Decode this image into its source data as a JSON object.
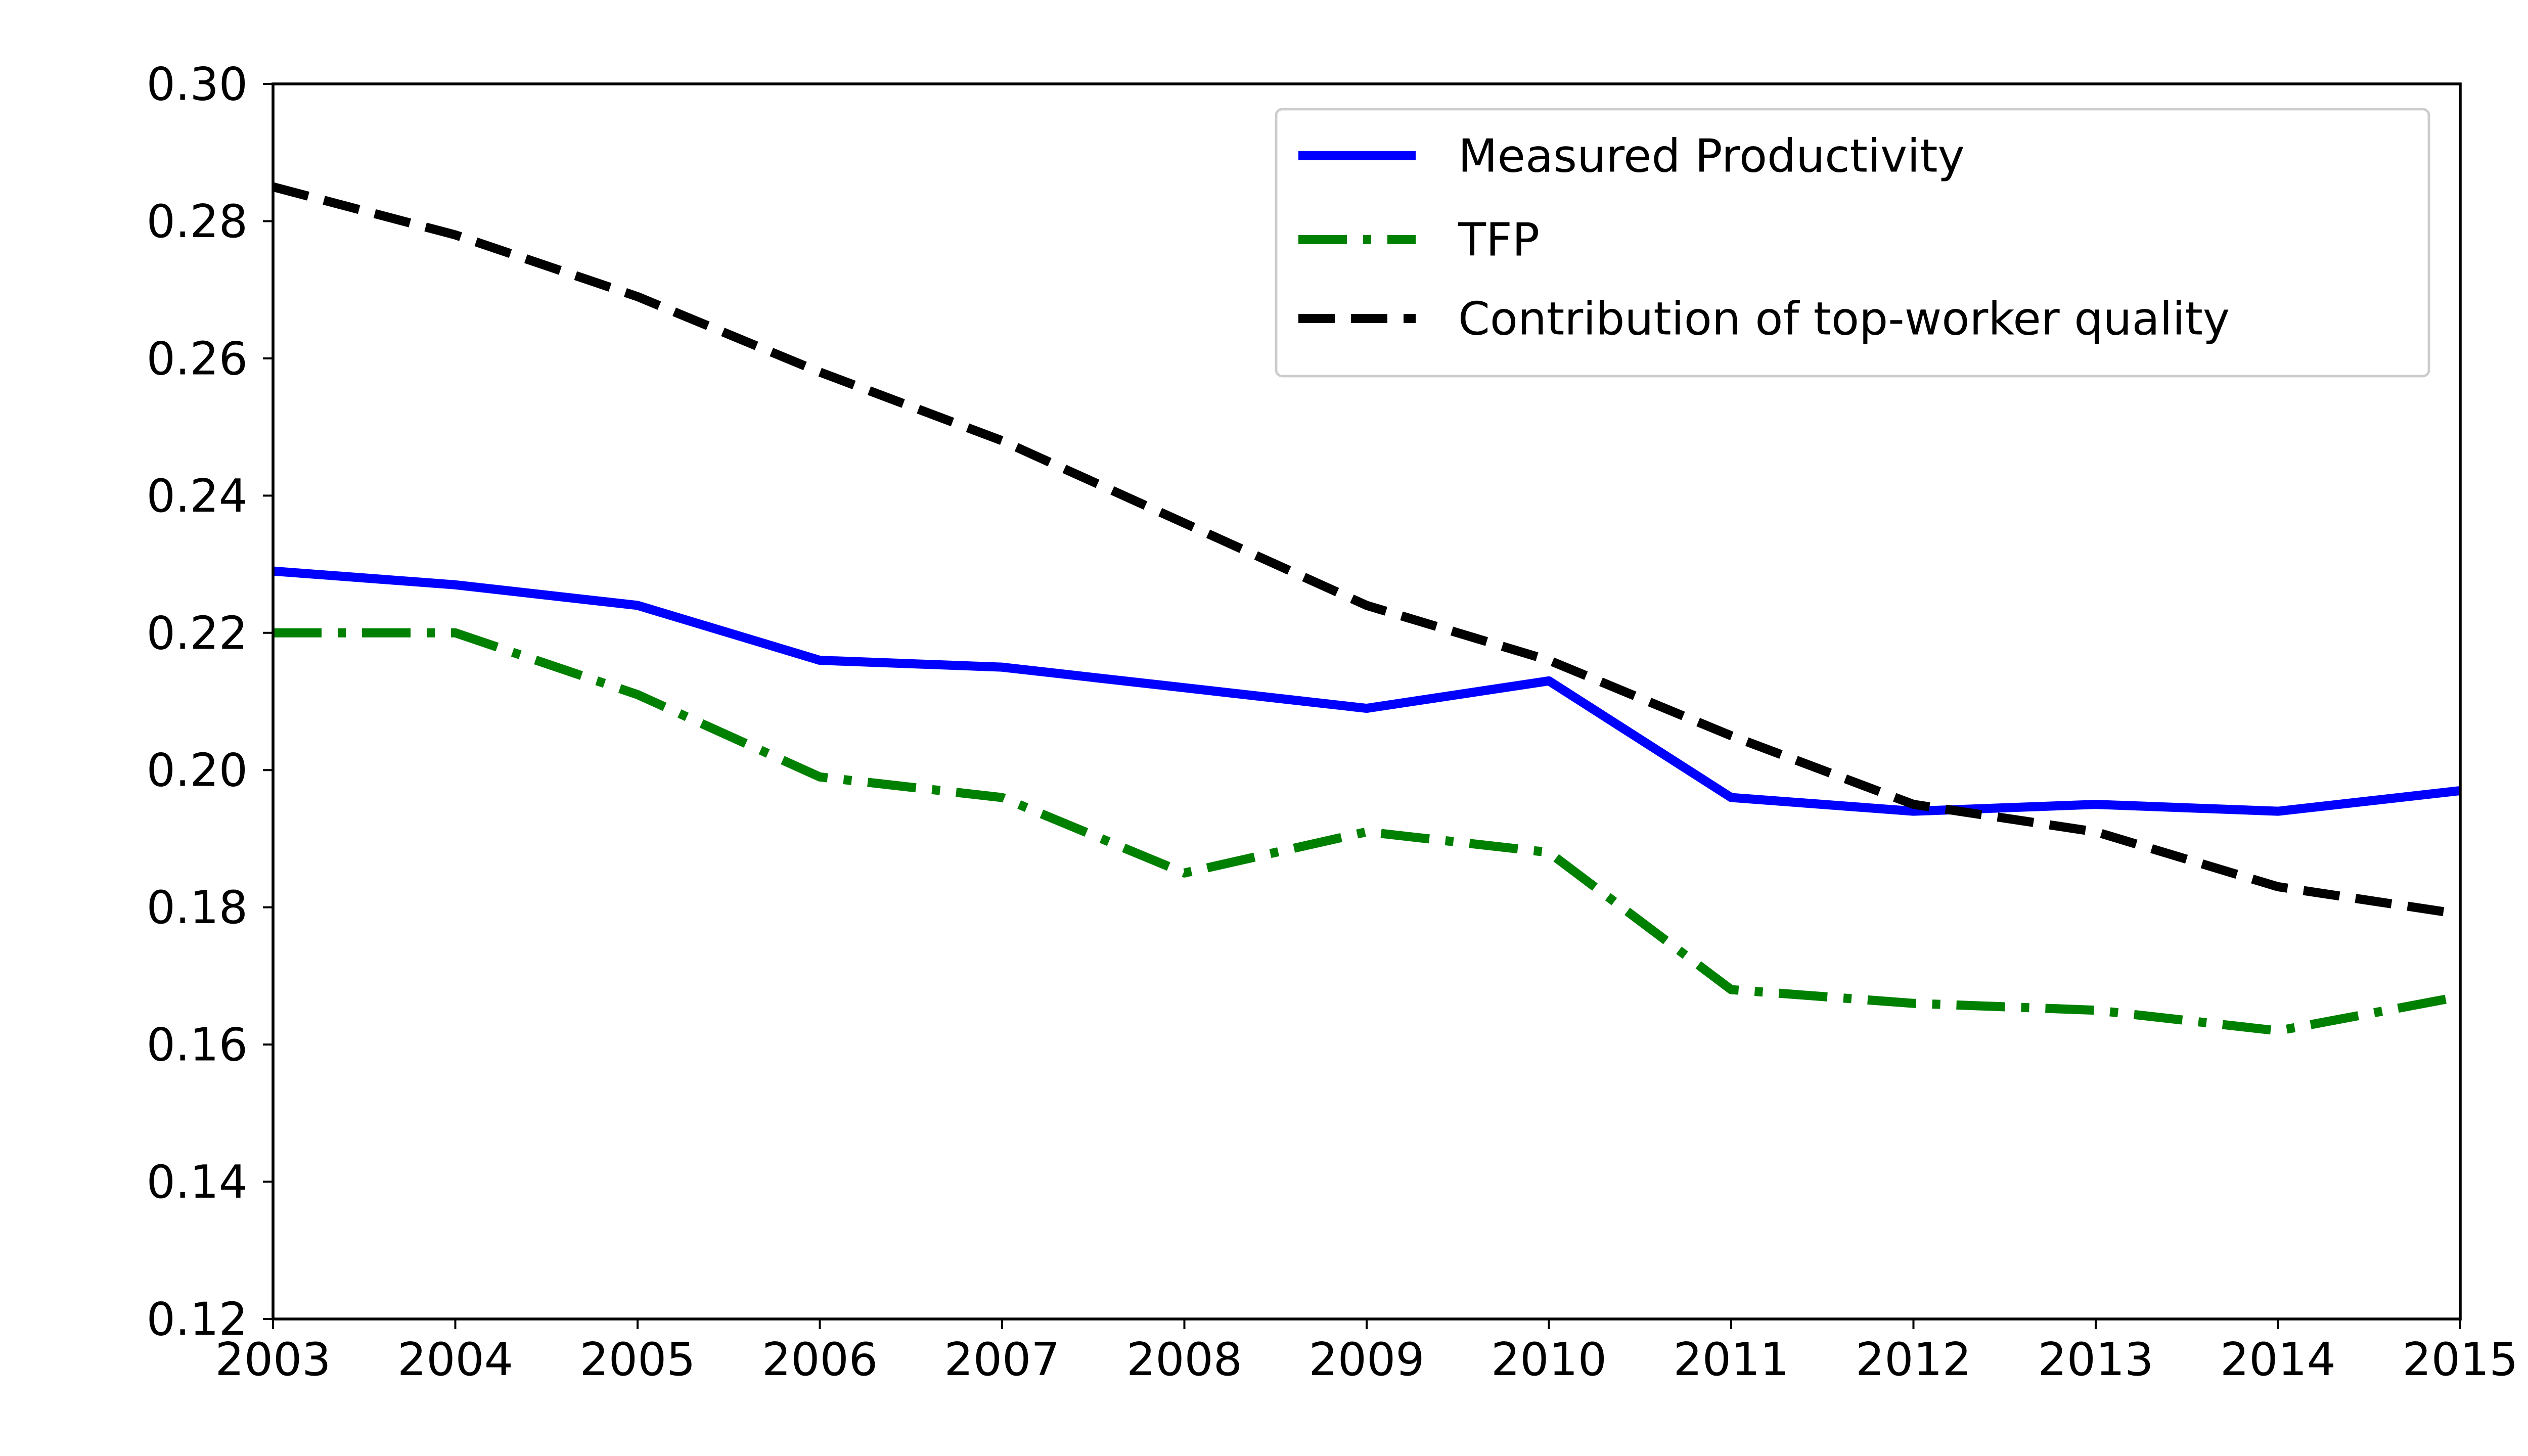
{
  "chart_data": {
    "type": "line",
    "title": "",
    "xlabel": "",
    "ylabel": "",
    "x": [
      2003,
      2004,
      2005,
      2006,
      2007,
      2008,
      2009,
      2010,
      2011,
      2012,
      2013,
      2014,
      2015
    ],
    "series": [
      {
        "name": "Measured Productivity",
        "color": "#0000ff",
        "style": "solid",
        "values": [
          0.229,
          0.227,
          0.224,
          0.216,
          0.215,
          0.212,
          0.209,
          0.213,
          0.196,
          0.194,
          0.195,
          0.194,
          0.197
        ]
      },
      {
        "name": "TFP",
        "color": "#008000",
        "style": "dashdot",
        "values": [
          0.22,
          0.22,
          0.211,
          0.199,
          0.196,
          0.185,
          0.191,
          0.188,
          0.168,
          0.166,
          0.165,
          0.162,
          0.167
        ]
      },
      {
        "name": "Contribution of top-worker quality",
        "color": "#000000",
        "style": "dashed",
        "values": [
          0.285,
          0.278,
          0.269,
          0.258,
          0.248,
          0.236,
          0.224,
          0.216,
          0.205,
          0.195,
          0.191,
          0.183,
          0.179
        ]
      }
    ],
    "xlim": [
      2003,
      2015
    ],
    "ylim": [
      0.12,
      0.3
    ],
    "xticks": [
      2003,
      2004,
      2005,
      2006,
      2007,
      2008,
      2009,
      2010,
      2011,
      2012,
      2013,
      2014,
      2015
    ],
    "xtick_labels": [
      "2003",
      "2004",
      "2005",
      "2006",
      "2007",
      "2008",
      "2009",
      "2010",
      "2011",
      "2012",
      "2013",
      "2014",
      "2015"
    ],
    "yticks": [
      0.12,
      0.14,
      0.16,
      0.18,
      0.2,
      0.22,
      0.24,
      0.26,
      0.28,
      0.3
    ],
    "ytick_labels": [
      "0.12",
      "0.14",
      "0.16",
      "0.18",
      "0.20",
      "0.22",
      "0.24",
      "0.26",
      "0.28",
      "0.30"
    ],
    "grid": false,
    "legend": {
      "position": "upper right",
      "entries": [
        "Measured Productivity",
        "TFP",
        "Contribution of top-worker quality"
      ]
    },
    "axis_color": "#000000",
    "background_color": "#ffffff"
  }
}
